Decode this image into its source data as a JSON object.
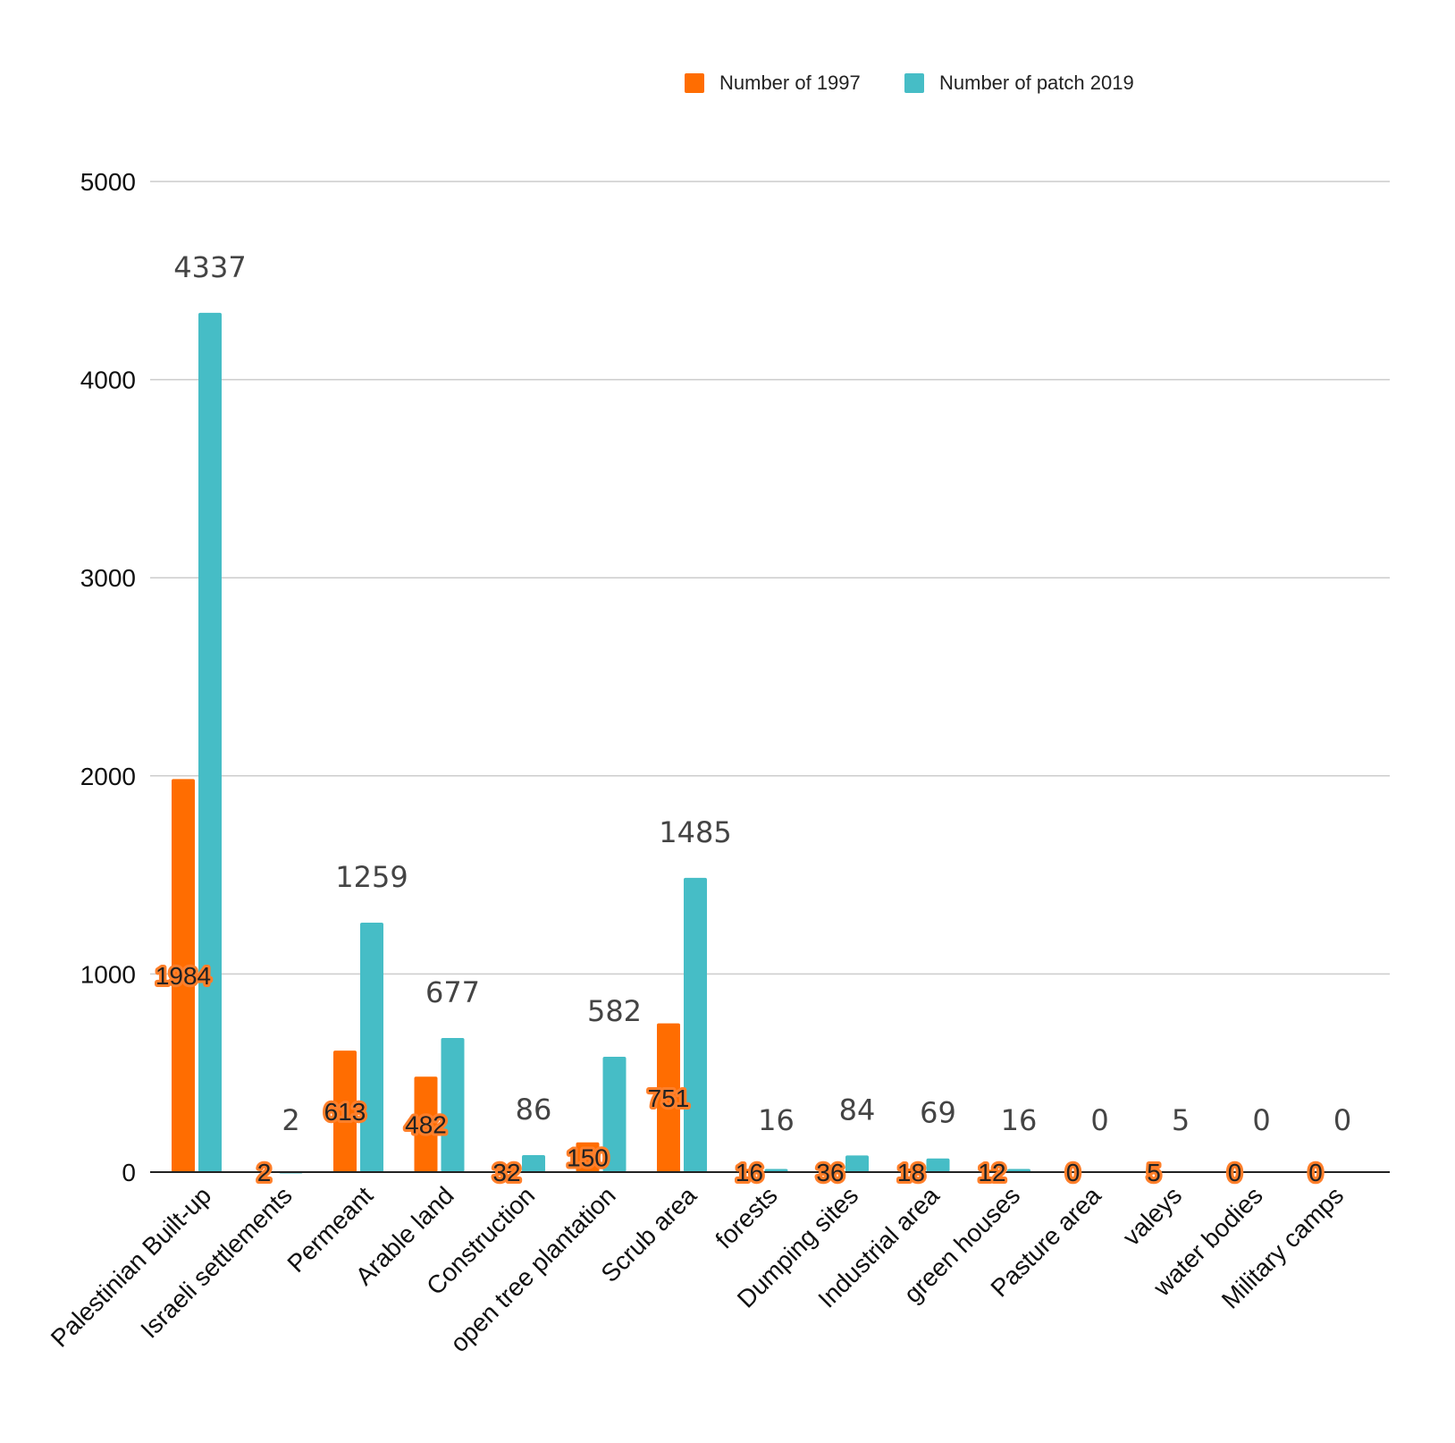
{
  "chart_data": {
    "type": "bar",
    "title": "",
    "xlabel": "",
    "ylabel": "",
    "ylim": [
      0,
      5000
    ],
    "yticks": [
      0,
      1000,
      2000,
      3000,
      4000,
      5000
    ],
    "grid": true,
    "legend_position": "top-right",
    "categories": [
      "Palestinian Built-up",
      "Israeli settlements",
      "Permeant",
      "Arable land",
      "Construction",
      "open tree plantation",
      "Scrub area",
      "forests",
      "Dumping sites",
      "Industrial area",
      "green houses",
      "Pasture area",
      "valeys",
      "water bodies",
      "Military camps"
    ],
    "series": [
      {
        "name": "Number of 1997",
        "color": "#ff6d01",
        "values": [
          1984,
          2,
          613,
          482,
          32,
          150,
          751,
          16,
          36,
          18,
          12,
          0,
          5,
          0,
          0
        ]
      },
      {
        "name": "Number of patch 2019",
        "color": "#46bdc6",
        "values": [
          4337,
          2,
          1259,
          677,
          86,
          582,
          1485,
          16,
          84,
          69,
          16,
          0,
          5,
          0,
          0
        ]
      }
    ]
  }
}
